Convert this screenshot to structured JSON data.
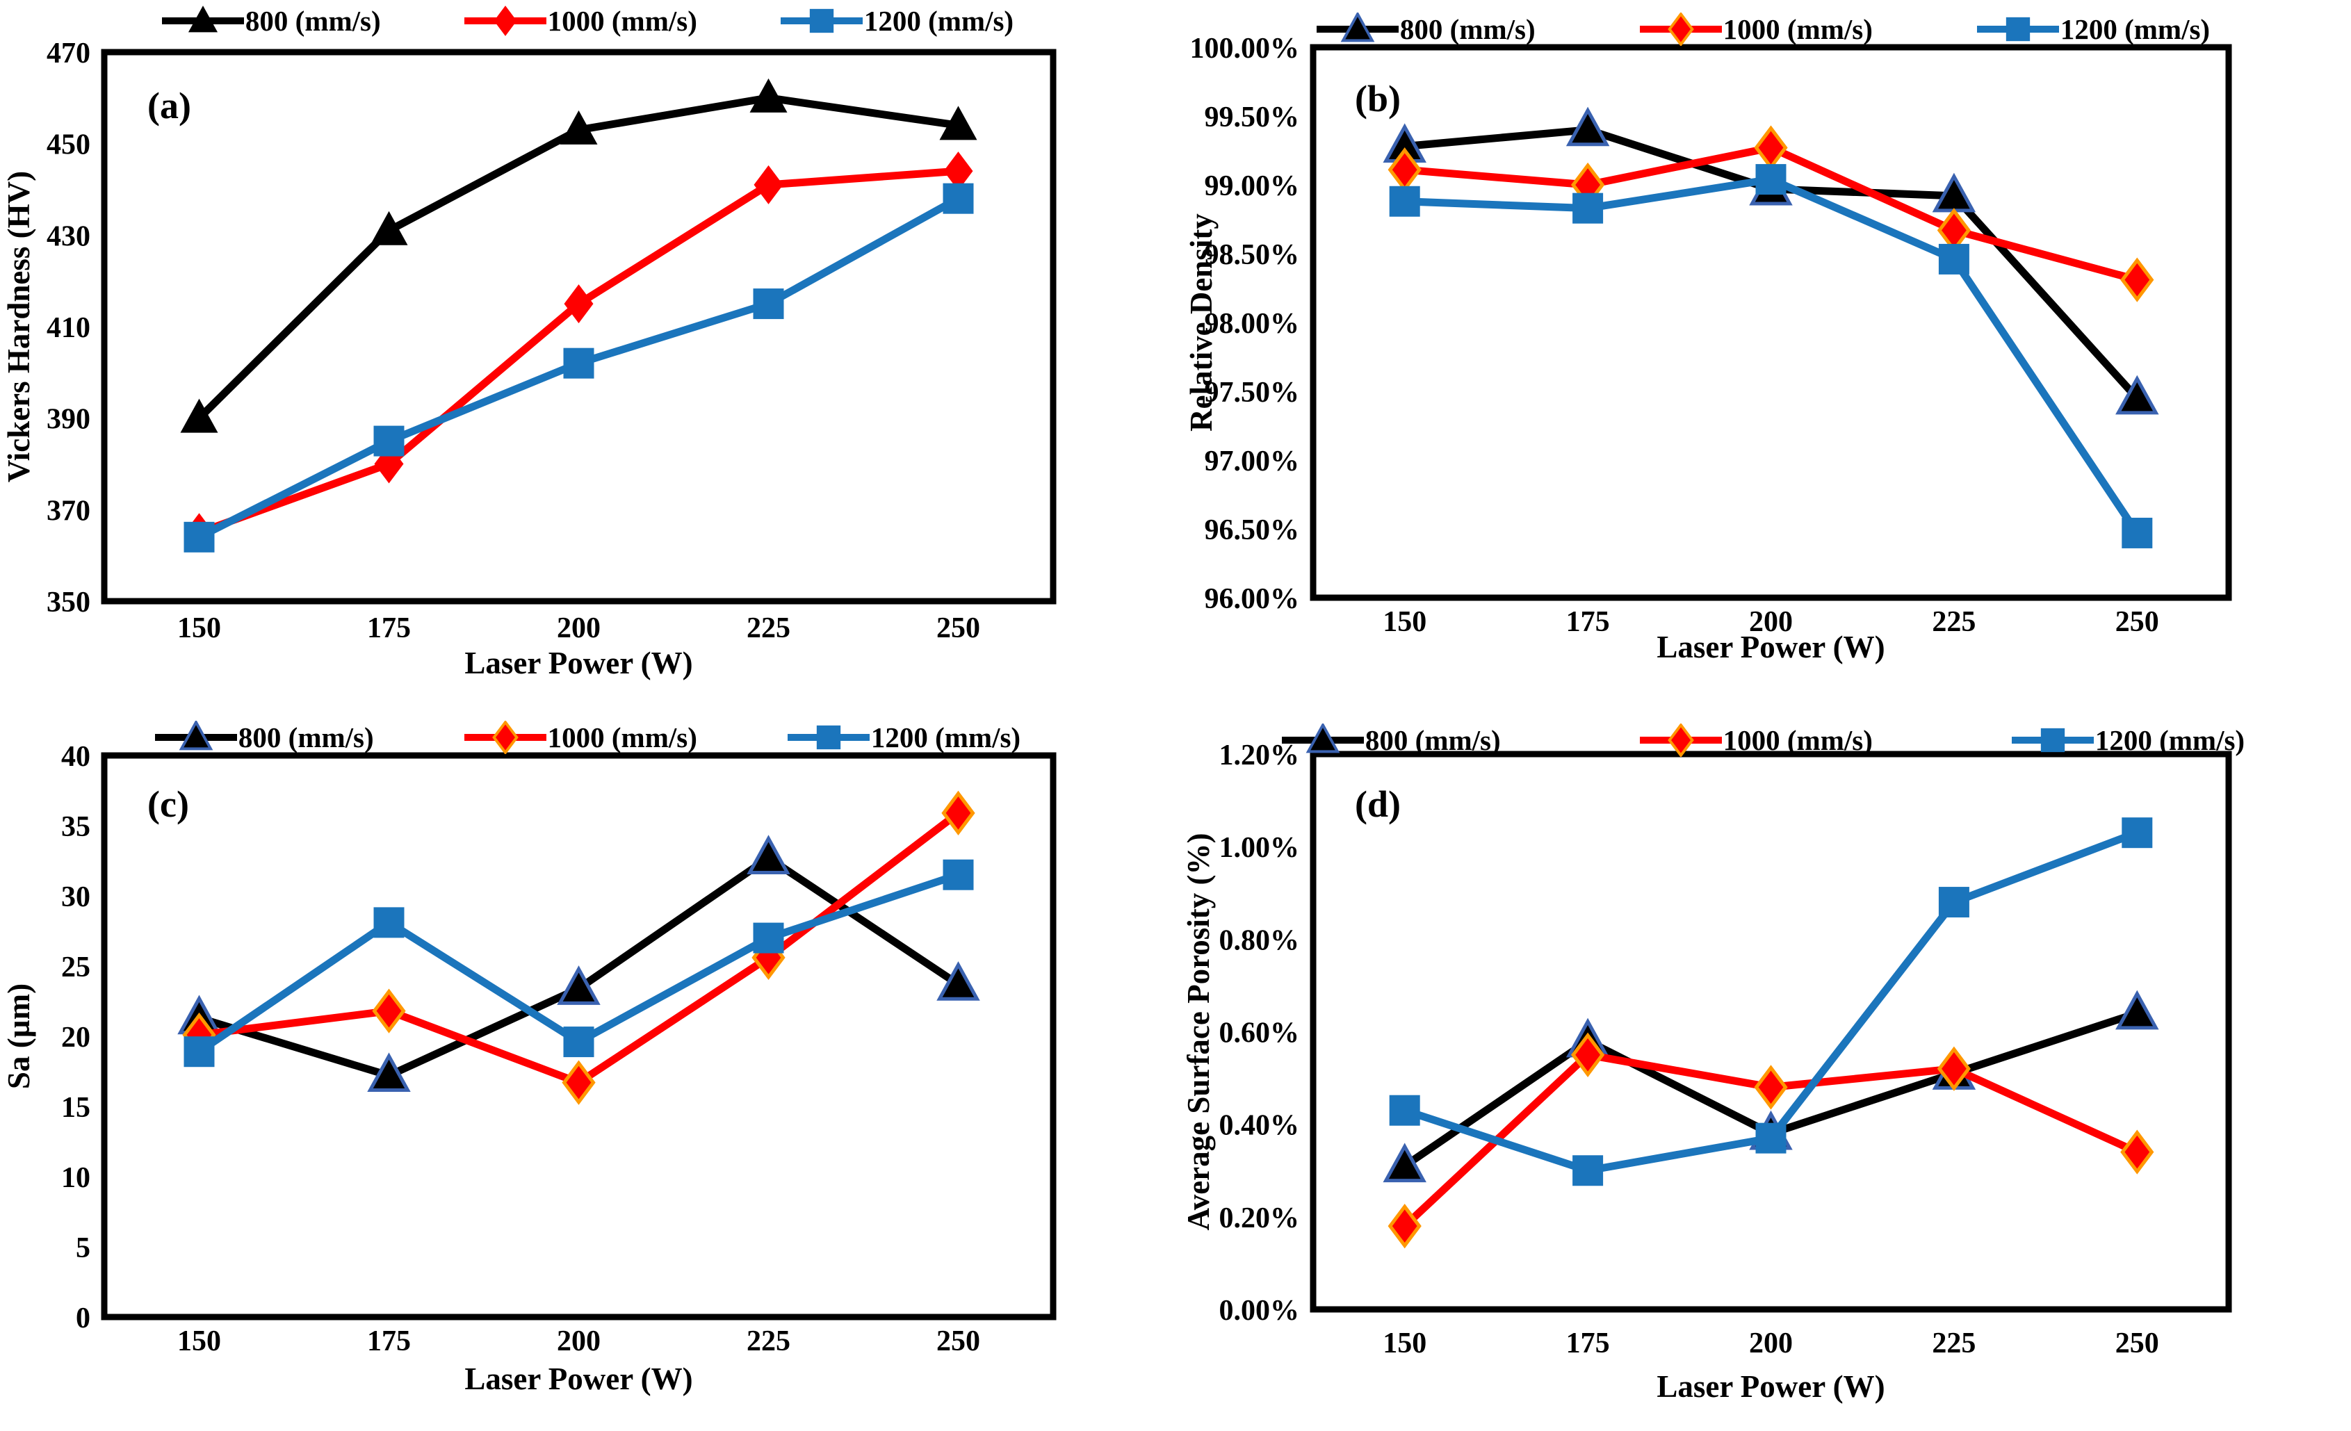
{
  "figure": {
    "background": "#FFFFFF"
  },
  "legend_labels": [
    "800 (mm/s)",
    "1000 (mm/s)",
    "1200 (mm/s)"
  ],
  "colors": {
    "series_800": "#000000",
    "series_1000": "#FF0000",
    "series_1200": "#1B75BC",
    "triangle_edge": "#3A62B0",
    "diamond_edge": "#FF9800"
  },
  "chart_data": [
    {
      "panel": "(a)",
      "type": "line",
      "x": [
        150,
        175,
        200,
        225,
        250
      ],
      "xticks": [
        "150",
        "175",
        "200",
        "225",
        "250"
      ],
      "xlabel": "Laser Power (W)",
      "ylabel": "Vickers Hardness (HV)",
      "ylim": [
        350,
        470
      ],
      "grid": false,
      "legend_position": "top",
      "yticks": [
        {
          "v": 350,
          "label": "350"
        },
        {
          "v": 370,
          "label": "370"
        },
        {
          "v": 390,
          "label": "390"
        },
        {
          "v": 410,
          "label": "410"
        },
        {
          "v": 430,
          "label": "430"
        },
        {
          "v": 450,
          "label": "450"
        },
        {
          "v": 470,
          "label": "470"
        }
      ],
      "series": [
        {
          "name": "800 (mm/s)",
          "marker": "triangle",
          "color": "#000000",
          "marker_edge": null,
          "values": [
            390,
            431,
            453,
            460,
            454
          ]
        },
        {
          "name": "1000 (mm/s)",
          "marker": "diamond",
          "color": "#FF0000",
          "marker_edge": null,
          "values": [
            365,
            380,
            415,
            441,
            444
          ]
        },
        {
          "name": "1200 (mm/s)",
          "marker": "square",
          "color": "#1B75BC",
          "marker_edge": null,
          "values": [
            364,
            385,
            402,
            415,
            438
          ]
        }
      ]
    },
    {
      "panel": "(b)",
      "type": "line",
      "x": [
        150,
        175,
        200,
        225,
        250
      ],
      "xticks": [
        "150",
        "175",
        "200",
        "225",
        "250"
      ],
      "xlabel": "Laser Power (W)",
      "ylabel": "Relative Density",
      "ylim": [
        96.0,
        100.0
      ],
      "grid": false,
      "legend_position": "top",
      "yticks": [
        {
          "v": 96.0,
          "label": "96.00%"
        },
        {
          "v": 96.5,
          "label": "96.50%"
        },
        {
          "v": 97.0,
          "label": "97.00%"
        },
        {
          "v": 97.5,
          "label": "97.50%"
        },
        {
          "v": 98.0,
          "label": "98.00%"
        },
        {
          "v": 98.5,
          "label": "98.50%"
        },
        {
          "v": 99.0,
          "label": "99.00%"
        },
        {
          "v": 99.5,
          "label": "99.50%"
        },
        {
          "v": 100.0,
          "label": "100.00%"
        }
      ],
      "series": [
        {
          "name": "800 (mm/s)",
          "marker": "triangle",
          "color": "#000000",
          "marker_edge": "#3A62B0",
          "values": [
            99.28,
            99.4,
            98.97,
            98.92,
            97.45
          ]
        },
        {
          "name": "1000 (mm/s)",
          "marker": "diamond",
          "color": "#FF0000",
          "marker_edge": "#FF9800",
          "values": [
            99.11,
            99.0,
            99.27,
            98.67,
            98.31
          ]
        },
        {
          "name": "1200 (mm/s)",
          "marker": "square",
          "color": "#1B75BC",
          "marker_edge": null,
          "values": [
            98.88,
            98.83,
            99.04,
            98.46,
            96.47
          ]
        }
      ]
    },
    {
      "panel": "(c)",
      "type": "line",
      "x": [
        150,
        175,
        200,
        225,
        250
      ],
      "xticks": [
        "150",
        "175",
        "200",
        "225",
        "250"
      ],
      "xlabel": "Laser Power (W)",
      "ylabel": "Sa (µm)",
      "ylim": [
        0,
        40
      ],
      "grid": false,
      "legend_position": "top",
      "yticks": [
        {
          "v": 0,
          "label": "0"
        },
        {
          "v": 5,
          "label": "5"
        },
        {
          "v": 10,
          "label": "10"
        },
        {
          "v": 15,
          "label": "15"
        },
        {
          "v": 20,
          "label": "20"
        },
        {
          "v": 25,
          "label": "25"
        },
        {
          "v": 30,
          "label": "30"
        },
        {
          "v": 35,
          "label": "35"
        },
        {
          "v": 40,
          "label": "40"
        }
      ],
      "series": [
        {
          "name": "800 (mm/s)",
          "marker": "triangle",
          "color": "#000000",
          "marker_edge": "#3A62B0",
          "values": [
            21.3,
            17.2,
            23.4,
            32.7,
            23.7
          ]
        },
        {
          "name": "1000 (mm/s)",
          "marker": "diamond",
          "color": "#FF0000",
          "marker_edge": "#FF9800",
          "values": [
            20.1,
            21.8,
            16.7,
            25.6,
            35.9
          ]
        },
        {
          "name": "1200 (mm/s)",
          "marker": "square",
          "color": "#1B75BC",
          "marker_edge": null,
          "values": [
            18.9,
            28.1,
            19.6,
            27.0,
            31.5
          ]
        }
      ]
    },
    {
      "panel": "(d)",
      "type": "line",
      "x": [
        150,
        175,
        200,
        225,
        250
      ],
      "xticks": [
        "150",
        "175",
        "200",
        "225",
        "250"
      ],
      "xlabel": "Laser Power (W)",
      "ylabel": "Average Surface Porosity (%)",
      "ylim": [
        0.0,
        1.2
      ],
      "grid": false,
      "legend_position": "top",
      "yticks": [
        {
          "v": 0.0,
          "label": "0.00%"
        },
        {
          "v": 0.2,
          "label": "0.20%"
        },
        {
          "v": 0.4,
          "label": "0.40%"
        },
        {
          "v": 0.6,
          "label": "0.60%"
        },
        {
          "v": 0.8,
          "label": "0.80%"
        },
        {
          "v": 1.0,
          "label": "1.00%"
        },
        {
          "v": 1.2,
          "label": "1.20%"
        }
      ],
      "series": [
        {
          "name": "800 (mm/s)",
          "marker": "triangle",
          "color": "#000000",
          "marker_edge": "#3A62B0",
          "values": [
            0.31,
            0.58,
            0.38,
            0.51,
            0.64
          ]
        },
        {
          "name": "1000 (mm/s)",
          "marker": "diamond",
          "color": "#FF0000",
          "marker_edge": "#FF9800",
          "values": [
            0.18,
            0.55,
            0.48,
            0.52,
            0.34
          ]
        },
        {
          "name": "1200 (mm/s)",
          "marker": "square",
          "color": "#1B75BC",
          "marker_edge": null,
          "values": [
            0.43,
            0.3,
            0.37,
            0.88,
            1.03
          ]
        }
      ]
    }
  ]
}
